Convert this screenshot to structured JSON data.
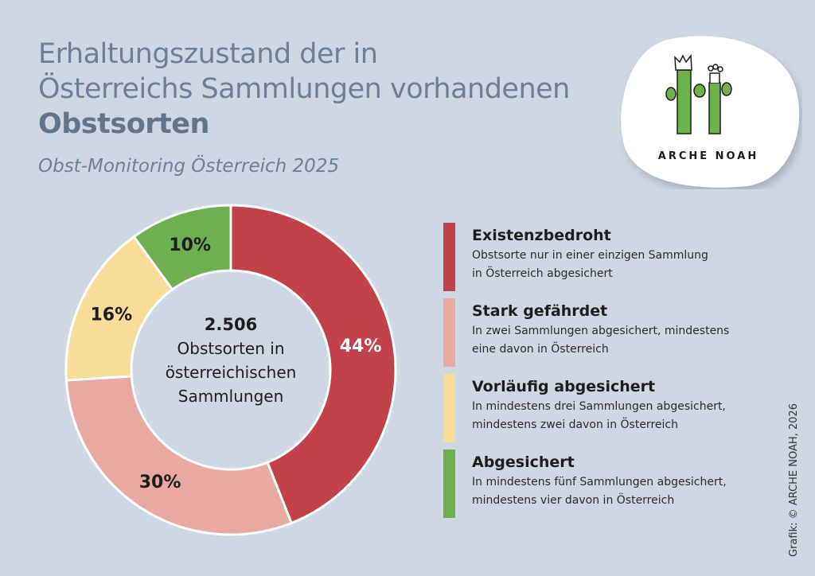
{
  "header": {
    "title_line1": "Erhaltungszustand der in",
    "title_line2": "Österreichs Sammlungen vorhandenen",
    "title_bold": "Obstsorten",
    "subtitle": "Obst-Monitoring Österreich 2025"
  },
  "logo": {
    "text": "ARCHE NOAH"
  },
  "chart_data": {
    "type": "pie",
    "variant": "donut",
    "center_value": "2.506",
    "center_label_lines": [
      "Obstsorten in",
      "österreichischen",
      "Sammlungen"
    ],
    "categories": [
      "Existenzbedroht",
      "Stark gefährdet",
      "Vorläufig abgesichert",
      "Abgesichert"
    ],
    "values": [
      44,
      30,
      16,
      10
    ],
    "data_labels": [
      "44%",
      "30%",
      "16%",
      "10%"
    ],
    "colors": [
      "#c2424c",
      "#e8a9a2",
      "#f6dd98",
      "#6db04d"
    ],
    "legend_placement": "right"
  },
  "legend": [
    {
      "title": "Existenzbedroht",
      "line1": "Obstsorte nur in einer einzigen Sammlung",
      "line2": "in Österreich abgesichert"
    },
    {
      "title": "Stark gefährdet",
      "line1": "In zwei Sammlungen abgesichert, mindestens",
      "line2": "eine davon in Österreich"
    },
    {
      "title": "Vorläufig abgesichert",
      "line1": "In mindestens drei Sammlungen abgesichert,",
      "line2": "mindestens zwei davon in Österreich"
    },
    {
      "title": "Abgesichert",
      "line1": "In mindestens fünf Sammlungen abgesichert,",
      "line2": "mindestens vier davon in Österreich"
    }
  ],
  "credit": "Grafik: © ARCHE NOAH, 2026"
}
